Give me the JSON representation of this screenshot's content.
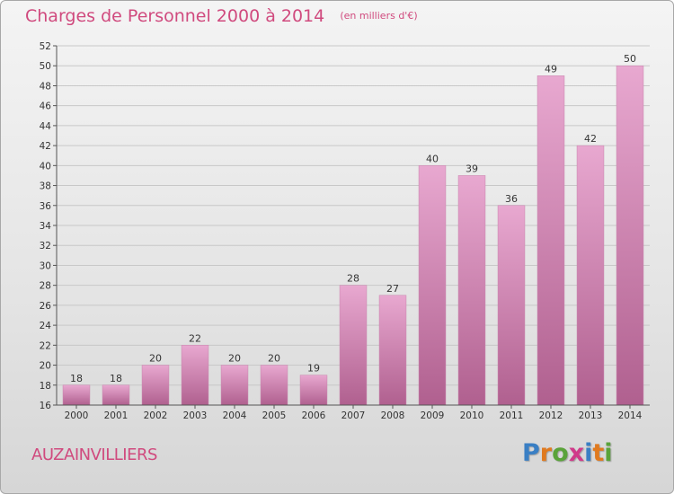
{
  "header": {
    "title": "Charges de Personnel 2000 à 2014",
    "subtitle": "(en milliers d'€)"
  },
  "footer": {
    "location": "AUZAINVILLIERS",
    "brand_letters": [
      "P",
      "r",
      "o",
      "x",
      "i",
      "t",
      "i"
    ],
    "brand_colors": [
      "#3a7fc4",
      "#e07a1f",
      "#5aa33a",
      "#d03a8a",
      "#3a7fc4",
      "#e07a1f",
      "#5aa33a"
    ]
  },
  "colors": {
    "bar_light": "#e8a8d0",
    "bar_dark": "#b0608f",
    "title": "#d04a7e",
    "grid": "#c8c8c8"
  },
  "chart_data": {
    "type": "bar",
    "title": "Charges de Personnel 2000 à 2014",
    "subtitle": "(en milliers d'€)",
    "categories": [
      "2000",
      "2001",
      "2002",
      "2003",
      "2004",
      "2005",
      "2006",
      "2007",
      "2008",
      "2009",
      "2010",
      "2011",
      "2012",
      "2013",
      "2014"
    ],
    "values": [
      18,
      18,
      20,
      22,
      20,
      20,
      19,
      28,
      27,
      40,
      39,
      36,
      49,
      42,
      50
    ],
    "ylim": [
      16,
      52
    ],
    "yticks": [
      16,
      18,
      20,
      22,
      24,
      26,
      28,
      30,
      32,
      34,
      36,
      38,
      40,
      42,
      44,
      46,
      48,
      50,
      52
    ],
    "grid": true,
    "data_labels": true
  }
}
